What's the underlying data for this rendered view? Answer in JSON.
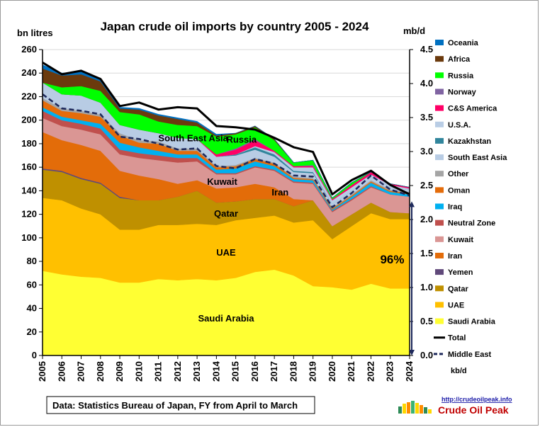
{
  "chart_data": {
    "type": "area",
    "title": "Japan crude oil imports by country 2005 - 2024",
    "ylabel_left": "bn litres",
    "ylabel_right": "mb/d",
    "ylim_left": [
      0,
      260
    ],
    "yticks_left": [
      0,
      20,
      40,
      60,
      80,
      100,
      120,
      140,
      160,
      180,
      200,
      220,
      240,
      260
    ],
    "ylim_right": [
      0,
      4.5
    ],
    "yticks_right": [
      "0.0",
      "0.5",
      "1.0",
      "1.5",
      "2.0",
      "2.5",
      "3.0",
      "3.5",
      "4.0",
      "4.5"
    ],
    "x": [
      2005,
      2006,
      2007,
      2008,
      2009,
      2010,
      2011,
      2012,
      2013,
      2014,
      2015,
      2016,
      2017,
      2018,
      2019,
      2020,
      2021,
      2022,
      2023,
      2024
    ],
    "stack_order": [
      "Saudi Arabia",
      "UAE",
      "Qatar",
      "Yemen",
      "Iran",
      "Kuwait",
      "Neutral Zone",
      "Iraq",
      "Oman",
      "Other",
      "South East Asia",
      "Kazakhstan",
      "U.S.A.",
      "C&S America",
      "Norway",
      "Russia",
      "Africa",
      "Oceania"
    ],
    "series": [
      {
        "name": "Saudi Arabia",
        "color": "#ffff33",
        "values": [
          72,
          69,
          67,
          66,
          62,
          62,
          65,
          64,
          65,
          64,
          66,
          71,
          73,
          68,
          59,
          58,
          56,
          61,
          57,
          57
        ]
      },
      {
        "name": "UAE",
        "color": "#ffc000",
        "values": [
          62,
          63,
          58,
          54,
          45,
          45,
          46,
          47,
          47,
          47,
          49,
          46,
          46,
          45,
          56,
          41,
          54,
          60,
          59,
          59
        ]
      },
      {
        "name": "Qatar",
        "color": "#bf9000",
        "values": [
          24,
          24,
          25,
          26,
          27,
          25,
          21,
          24,
          28,
          19,
          16,
          16,
          14,
          14,
          17,
          11,
          10,
          9,
          6,
          5
        ]
      },
      {
        "name": "Yemen",
        "color": "#60497a",
        "values": [
          1,
          1,
          1,
          1,
          1,
          0,
          0,
          0,
          0,
          0,
          0,
          0,
          0,
          0,
          0,
          0,
          0,
          0,
          0,
          0
        ]
      },
      {
        "name": "Iran",
        "color": "#e36c09",
        "values": [
          31,
          26,
          28,
          27,
          22,
          21,
          18,
          11,
          9,
          12,
          12,
          13,
          10,
          6,
          0,
          0,
          0,
          0,
          0,
          0
        ]
      },
      {
        "name": "Kuwait",
        "color": "#da9694",
        "values": [
          12,
          12,
          13,
          14,
          14,
          15,
          16,
          18,
          16,
          12,
          11,
          14,
          14,
          14,
          14,
          12,
          12,
          13,
          15,
          14
        ]
      },
      {
        "name": "Neutral Zone",
        "color": "#c0504d",
        "values": [
          6,
          5,
          5,
          5,
          4,
          4,
          4,
          4,
          3,
          1,
          1,
          1,
          1,
          1,
          1,
          1,
          1,
          1,
          0,
          0
        ]
      },
      {
        "name": "Iraq",
        "color": "#00b0f0",
        "values": [
          3,
          3,
          3,
          4,
          6,
          5,
          4,
          3,
          3,
          3,
          4,
          4,
          3,
          2,
          2,
          1,
          2,
          3,
          2,
          2
        ]
      },
      {
        "name": "Oman",
        "color": "#e46c0a",
        "values": [
          6,
          5,
          6,
          6,
          6,
          4,
          6,
          3,
          3,
          2,
          2,
          2,
          2,
          1,
          1,
          1,
          1,
          1,
          1,
          1
        ]
      },
      {
        "name": "Other",
        "color": "#a5a5a5",
        "values": [
          2,
          2,
          2,
          2,
          2,
          2,
          2,
          2,
          2,
          1,
          1,
          1,
          1,
          1,
          1,
          1,
          1,
          1,
          1,
          1
        ]
      },
      {
        "name": "South East Asia",
        "color": "#b8cce4",
        "values": [
          13,
          12,
          13,
          10,
          7,
          9,
          7,
          9,
          8,
          8,
          8,
          7,
          5,
          4,
          4,
          3,
          3,
          3,
          2,
          2
        ]
      },
      {
        "name": "Kazakhstan",
        "color": "#31859c",
        "values": [
          0,
          0,
          0,
          0,
          0,
          0,
          0,
          0,
          0,
          0,
          1,
          2,
          2,
          1,
          1,
          0,
          0,
          0,
          0,
          0
        ]
      },
      {
        "name": "U.S.A.",
        "color": "#b9cde5",
        "values": [
          0,
          0,
          0,
          0,
          0,
          0,
          0,
          0,
          0,
          0,
          0,
          1,
          2,
          3,
          4,
          3,
          3,
          2,
          2,
          1
        ]
      },
      {
        "name": "C&S America",
        "color": "#ff0066",
        "values": [
          0,
          0,
          0,
          0,
          0,
          0,
          0,
          0,
          0,
          2,
          4,
          5,
          1,
          1,
          1,
          1,
          2,
          2,
          1,
          1
        ]
      },
      {
        "name": "Norway",
        "color": "#8064a2",
        "values": [
          0,
          0,
          0,
          0,
          0,
          0,
          0,
          0,
          0,
          0,
          1,
          1,
          0,
          0,
          1,
          0,
          0,
          0,
          0,
          0
        ]
      },
      {
        "name": "Russia",
        "color": "#00ff00",
        "values": [
          0,
          6,
          8,
          10,
          11,
          13,
          10,
          11,
          11,
          15,
          12,
          10,
          9,
          3,
          4,
          1,
          2,
          0,
          0,
          0
        ]
      },
      {
        "name": "Africa",
        "color": "#6b3a0d",
        "values": [
          12,
          10,
          10,
          8,
          3,
          4,
          5,
          5,
          3,
          1,
          1,
          1,
          1,
          0,
          0,
          0,
          0,
          0,
          0,
          0
        ]
      },
      {
        "name": "Oceania",
        "color": "#0070c0",
        "values": [
          3,
          2,
          2,
          2,
          1,
          1,
          1,
          1,
          1,
          1,
          0,
          0,
          0,
          0,
          0,
          0,
          0,
          0,
          0,
          0
        ]
      }
    ],
    "lines": [
      {
        "name": "Total",
        "style": "solid",
        "color": "#000000",
        "values": [
          249,
          239,
          242,
          235,
          212,
          215,
          209,
          211,
          210,
          195,
          194,
          192,
          185,
          177,
          173,
          137,
          149,
          157,
          145,
          137
        ]
      },
      {
        "name": "Middle East",
        "style": "dashed",
        "color": "#1f2a5c",
        "values": [
          222,
          210,
          208,
          205,
          186,
          184,
          180,
          175,
          176,
          161,
          159,
          167,
          163,
          153,
          152,
          126,
          138,
          153,
          141,
          136
        ]
      }
    ],
    "area_labels": [
      {
        "text": "Saudi Arabia",
        "x": 2014.5,
        "y": 32
      },
      {
        "text": "UAE",
        "x": 2014.5,
        "y": 88
      },
      {
        "text": "Qatar",
        "x": 2014.5,
        "y": 121
      },
      {
        "text": "Iran",
        "x": 2017.3,
        "y": 139
      },
      {
        "text": "Kuwait",
        "x": 2014.3,
        "y": 148
      },
      {
        "text": "South East Asia",
        "x": 2012.8,
        "y": 185
      },
      {
        "text": "Russia",
        "x": 2015.3,
        "y": 184
      }
    ],
    "annotation": {
      "text": "96%",
      "x": 2023.1,
      "y": 82,
      "arrow_from": 0,
      "arrow_to": 131
    },
    "legend_title_extra": "kb/d",
    "legend_placement": "right"
  },
  "source_note": "Data: Statistics Bureau of Japan, FY from April to March",
  "brand": {
    "url": "http://crudeoilpeak.info",
    "name": "Crude Oil Peak"
  }
}
